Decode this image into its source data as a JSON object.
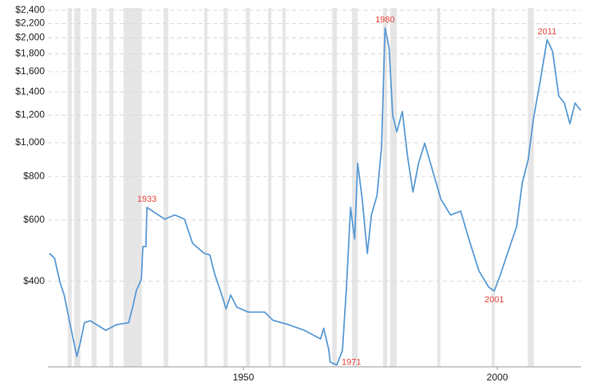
{
  "chart_data": {
    "type": "line",
    "color": "#5b9bd5",
    "band_color": "#e6e6e6",
    "log_y": true,
    "grid": true,
    "xlim": [
      1911.5,
      2016.5
    ],
    "ylim": [
      227,
      2400
    ],
    "xticks": [
      1950,
      2000
    ],
    "yticks": [
      {
        "value": 400,
        "label": "$400"
      },
      {
        "value": 600,
        "label": "$600"
      },
      {
        "value": 800,
        "label": "$800"
      },
      {
        "value": 1000,
        "label": "$1,000"
      },
      {
        "value": 1200,
        "label": "$1,200"
      },
      {
        "value": 1400,
        "label": "$1,400"
      },
      {
        "value": 1600,
        "label": "$1,600"
      },
      {
        "value": 1800,
        "label": "$1,800"
      },
      {
        "value": 2000,
        "label": "$2,000"
      },
      {
        "value": 2200,
        "label": "$2,200"
      },
      {
        "value": 2400,
        "label": "$2,400"
      }
    ],
    "recessions": [
      [
        1915.4,
        1916.2
      ],
      [
        1916.7,
        1917.9
      ],
      [
        1920.1,
        1921.1
      ],
      [
        1923.6,
        1924.4
      ],
      [
        1926.4,
        1930.0
      ],
      [
        1934.3,
        1935.2
      ],
      [
        1942.3,
        1942.9
      ],
      [
        1946.1,
        1946.9
      ],
      [
        1950.5,
        1951.3
      ],
      [
        1954.9,
        1955.5
      ],
      [
        1957.7,
        1958.3
      ],
      [
        1967.5,
        1968.4
      ],
      [
        1971.4,
        1972.5
      ],
      [
        1977.5,
        1978.3
      ],
      [
        1978.9,
        1980.2
      ],
      [
        1988.2,
        1988.8
      ],
      [
        1998.9,
        1999.5
      ],
      [
        2006.0,
        2007.2
      ]
    ],
    "x": [
      1911.8,
      1912.8,
      1913.9,
      1914.7,
      1916,
      1917.2,
      1917.9,
      1918.7,
      1919.8,
      1921.8,
      1922.9,
      1925,
      1927.4,
      1928.2,
      1928.9,
      1929.9,
      1930.2,
      1930.8,
      1931,
      1932.1,
      1934.5,
      1936.5,
      1938.4,
      1940,
      1942.3,
      1943.4,
      1944.4,
      1945.5,
      1946.6,
      1947.5,
      1948.7,
      1951,
      1954.2,
      1955.8,
      1958.9,
      1962,
      1965.2,
      1965.8,
      1966.8,
      1967.1,
      1968.4,
      1969.5,
      1970.3,
      1971.1,
      1971.9,
      1972.5,
      1973.4,
      1974.4,
      1975.2,
      1976.3,
      1977.2,
      1977.9,
      1978.7,
      1979.4,
      1980.2,
      1981.3,
      1982.3,
      1983.4,
      1984.5,
      1985.7,
      1987.3,
      1988.9,
      1990.8,
      1992.8,
      1994.4,
      1996.4,
      1998.3,
      1999.4,
      2000.6,
      2002.2,
      2003.8,
      2004.9,
      2006.1,
      2007.1,
      2008.5,
      2009.8,
      2010.9,
      2012.1,
      2013.2,
      2014.3,
      2015.3,
      2016.4
    ],
    "values": [
      481,
      466,
      396,
      365,
      295,
      243,
      267,
      304,
      308,
      296,
      289,
      300,
      304,
      337,
      375,
      406,
      503,
      503,
      652,
      636,
      603,
      620,
      603,
      514,
      481,
      476,
      417,
      375,
      333,
      365,
      337,
      326,
      326,
      309,
      300,
      289,
      273,
      293,
      255,
      234,
      230,
      253,
      385,
      652,
      529,
      873,
      688,
      481,
      620,
      705,
      968,
      2134,
      1871,
      1198,
      1076,
      1229,
      920,
      722,
      873,
      996,
      828,
      688,
      620,
      636,
      529,
      428,
      385,
      375,
      417,
      490,
      573,
      764,
      896,
      1167,
      1518,
      1976,
      1827,
      1363,
      1300,
      1134,
      1300,
      1240
    ],
    "annotations": [
      {
        "text": "1933",
        "x": 1931,
        "y": 652,
        "position": "above"
      },
      {
        "text": "1971",
        "x": 1968.4,
        "y": 230,
        "position": "right"
      },
      {
        "text": "1980",
        "x": 1977.9,
        "y": 2134,
        "position": "above"
      },
      {
        "text": "2001",
        "x": 1999.4,
        "y": 375,
        "position": "below"
      },
      {
        "text": "2011",
        "x": 2009.8,
        "y": 1976,
        "position": "above"
      }
    ]
  }
}
